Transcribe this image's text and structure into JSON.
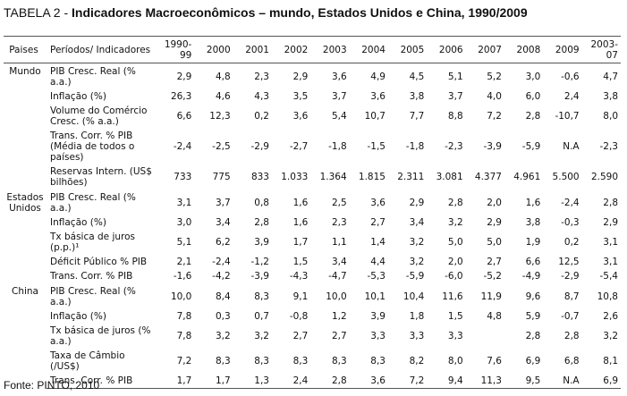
{
  "title": {
    "prefix": "TABELA 2 -",
    "text": "Indicadores Macroeconômicos – mundo, Estados Unidos e China, 1990/2009"
  },
  "table": {
    "headers": [
      "Paises",
      "Períodos/ Indicadores",
      "1990-99",
      "2000",
      "2001",
      "2002",
      "2003",
      "2004",
      "2005",
      "2006",
      "2007",
      "2008",
      "2009",
      "2003-07"
    ],
    "groups": [
      {
        "country": "Mundo",
        "rows": [
          {
            "label": "PIB Cresc. Real (% a.a.)",
            "values": [
              "2,9",
              "4,8",
              "2,3",
              "2,9",
              "3,6",
              "4,9",
              "4,5",
              "5,1",
              "5,2",
              "3,0",
              "-0,6",
              "4,7"
            ]
          },
          {
            "label": "Inflação (%)",
            "values": [
              "26,3",
              "4,6",
              "4,3",
              "3,5",
              "3,7",
              "3,6",
              "3,8",
              "3,7",
              "4,0",
              "6,0",
              "2,4",
              "3,8"
            ]
          },
          {
            "label": "Volume do Comércio Cresc. (% a.a.)",
            "values": [
              "6,6",
              "12,3",
              "0,2",
              "3,6",
              "5,4",
              "10,7",
              "7,7",
              "8,8",
              "7,2",
              "2,8",
              "-10,7",
              "8,0"
            ]
          },
          {
            "label": "Trans. Corr. % PIB (Média de todos o países)",
            "values": [
              "-2,4",
              "-2,5",
              "-2,9",
              "-2,7",
              "-1,8",
              "-1,5",
              "-1,8",
              "-2,3",
              "-3,9",
              "-5,9",
              "N.A",
              "-2,3"
            ]
          },
          {
            "label": "Reservas Intern. (US$ bilhões)",
            "values": [
              "733",
              "775",
              "833",
              "1.033",
              "1.364",
              "1.815",
              "2.311",
              "3.081",
              "4.377",
              "4.961",
              "5.500",
              "2.590"
            ]
          }
        ]
      },
      {
        "country": "Estados Unidos",
        "rows": [
          {
            "label": "PIB Cresc. Real (% a.a.)",
            "values": [
              "3,1",
              "3,7",
              "0,8",
              "1,6",
              "2,5",
              "3,6",
              "2,9",
              "2,8",
              "2,0",
              "1,6",
              "-2,4",
              "2,8"
            ]
          },
          {
            "label": "Inflação (%)",
            "values": [
              "3,0",
              "3,4",
              "2,8",
              "1,6",
              "2,3",
              "2,7",
              "3,4",
              "3,2",
              "2,9",
              "3,8",
              "-0,3",
              "2,9"
            ]
          },
          {
            "label": "Tx básica de juros (p.p.)¹",
            "values": [
              "5,1",
              "6,2",
              "3,9",
              "1,7",
              "1,1",
              "1,4",
              "3,2",
              "5,0",
              "5,0",
              "1,9",
              "0,2",
              "3,1"
            ]
          },
          {
            "label": "Déficit Público % PIB",
            "values": [
              "2,1",
              "-2,4",
              "-1,2",
              "1,5",
              "3,4",
              "4,4",
              "3,2",
              "2,0",
              "2,7",
              "6,6",
              "12,5",
              "3,1"
            ]
          },
          {
            "label": "Trans. Corr. % PIB",
            "values": [
              "-1,6",
              "-4,2",
              "-3,9",
              "-4,3",
              "-4,7",
              "-5,3",
              "-5,9",
              "-6,0",
              "-5,2",
              "-4,9",
              "-2,9",
              "-5,4"
            ]
          }
        ]
      },
      {
        "country": "China",
        "rows": [
          {
            "label": "PIB Cresc. Real (% a.a.)",
            "values": [
              "10,0",
              "8,4",
              "8,3",
              "9,1",
              "10,0",
              "10,1",
              "10,4",
              "11,6",
              "11,9",
              "9,6",
              "8,7",
              "10,8"
            ]
          },
          {
            "label": "Inflação (%)",
            "values": [
              "7,8",
              "0,3",
              "0,7",
              "-0,8",
              "1,2",
              "3,9",
              "1,8",
              "1,5",
              "4,8",
              "5,9",
              "-0,7",
              "2,6"
            ]
          },
          {
            "label": "Tx básica de juros (% a.a.)",
            "values": [
              "7,8",
              "3,2",
              "3,2",
              "2,7",
              "2,7",
              "3,3",
              "3,3",
              "3,3",
              null,
              "2,8",
              "2,8",
              "3,2"
            ]
          },
          {
            "label": "Taxa de Câmbio (/US$)",
            "values": [
              "7,2",
              "8,3",
              "8,3",
              "8,3",
              "8,3",
              "8,3",
              "8,2",
              "8,0",
              "7,6",
              "6,9",
              "6,8",
              "8,1"
            ]
          },
          {
            "label": "Trans. Corr. % PIB",
            "values": [
              "1,7",
              "1,7",
              "1,3",
              "2,4",
              "2,8",
              "3,6",
              "7,2",
              "9,4",
              "11,3",
              "9,5",
              "N.A",
              "6,9"
            ]
          }
        ]
      }
    ]
  },
  "footer": "Fonte: PINTO, 2010"
}
